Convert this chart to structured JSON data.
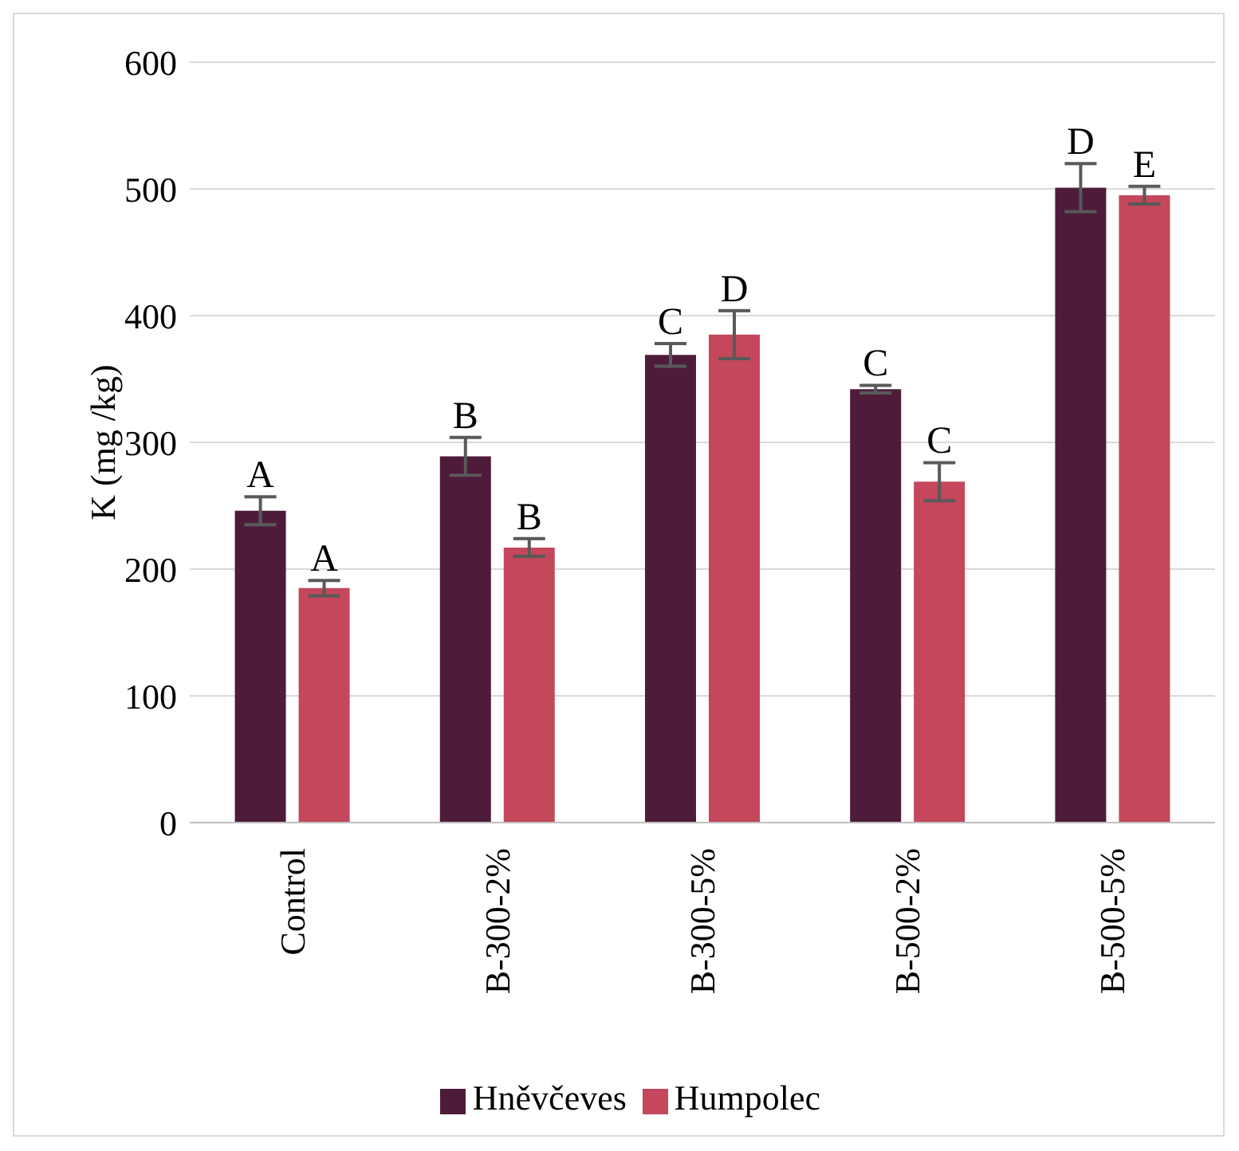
{
  "chart_data": {
    "type": "bar",
    "ylabel": "K (mg /kg)",
    "categories": [
      "Control",
      "B-300-2%",
      "B-300-5%",
      "B-500-2%",
      "B-500-5%"
    ],
    "series": [
      {
        "name": "Hněvčeves",
        "color": "#4e1c3a",
        "values": [
          246,
          289,
          369,
          342,
          501
        ],
        "errors": [
          11,
          15,
          9,
          3,
          19
        ]
      },
      {
        "name": "Humpolec",
        "color": "#c4475c",
        "values": [
          185,
          217,
          385,
          269,
          495
        ],
        "errors": [
          6,
          7,
          19,
          15,
          7
        ]
      }
    ],
    "ylim": [
      0,
      600
    ],
    "yticks": [
      0,
      100,
      200,
      300,
      400,
      500,
      600
    ],
    "grid": "y",
    "legend": "bottom",
    "annotations": [
      {
        "text": "A",
        "x": "Control",
        "y": 246
      },
      {
        "text": "A",
        "x": "Control",
        "y": 185
      },
      {
        "text": "B",
        "x": "B-300-2%",
        "y": 289
      },
      {
        "text": "B",
        "x": "B-300-2%",
        "y": 217
      },
      {
        "text": "C",
        "x": "B-300-5%",
        "y": 369
      },
      {
        "text": "D",
        "x": "B-300-5%",
        "y": 385
      },
      {
        "text": "C",
        "x": "B-500-2%",
        "y": 342
      },
      {
        "text": "C",
        "x": "B-500-2%",
        "y": 269
      },
      {
        "text": "D",
        "x": "B-500-5%",
        "y": 501
      },
      {
        "text": "E",
        "x": "B-500-5%",
        "y": 495
      }
    ]
  }
}
